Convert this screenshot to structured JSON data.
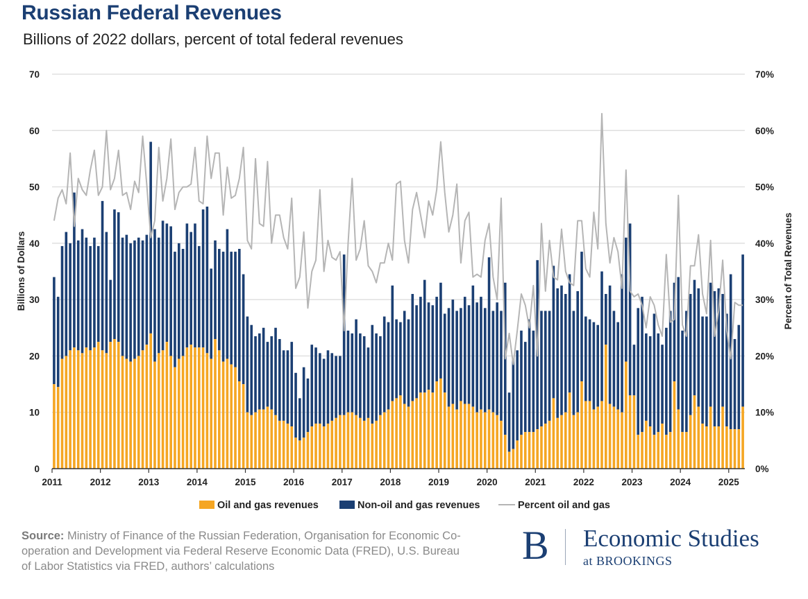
{
  "header": {
    "title": "Russian Federal Revenues",
    "subtitle": "Billions of 2022 dollars, percent of total federal revenues"
  },
  "source": {
    "label": "Source:",
    "text": " Ministry of Finance of the Russian Federation, Organisation for Economic Co-operation and Development via Federal Reserve Economic Data (FRED), U.S. Bureau of Labor Statistics via FRED, authors’ calculations"
  },
  "logo": {
    "letter": "B",
    "name": "Economic Studies",
    "sub": "at BROOKINGS"
  },
  "colors": {
    "oil": "#f5a623",
    "nonoil": "#1b3f73",
    "percent": "#b5b5b5",
    "grid": "#d9d9d9"
  },
  "chart_data": {
    "type": "bar",
    "stacked": true,
    "ylabel": "Billions of Dollars",
    "y2label": "Percent of Total Revenues",
    "ylim": [
      0,
      70
    ],
    "y2lim": [
      0,
      70
    ],
    "yticks": [
      "0",
      "10",
      "20",
      "30",
      "40",
      "50",
      "60",
      "70"
    ],
    "y2ticks": [
      "0%",
      "10%",
      "20%",
      "30%",
      "40%",
      "50%",
      "60%",
      "70%"
    ],
    "xticks": [
      "2011",
      "2012",
      "2013",
      "2014",
      "2015",
      "2016",
      "2017",
      "2018",
      "2019",
      "2020",
      "2021",
      "2022",
      "2023",
      "2024",
      "2025"
    ],
    "grid": true,
    "legend_position": "bottom",
    "series": [
      {
        "name": "Oil and gas revenues",
        "kind": "bar",
        "yearly_values": [
          [
            15.0,
            14.5,
            19.5,
            20.0,
            21.0,
            21.5,
            21.0,
            20.5,
            21.5,
            21.0,
            21.5,
            22.5
          ],
          [
            21.0,
            20.5,
            22.5,
            23.0,
            22.5,
            20.0,
            19.5,
            19.0,
            19.5,
            20.0,
            21.0,
            22.0
          ],
          [
            24.0,
            19.0,
            20.5,
            21.0,
            22.5,
            20.0,
            18.0,
            19.5,
            20.0,
            21.5,
            22.0,
            21.5
          ],
          [
            21.5,
            21.5,
            20.5,
            19.5,
            23.0,
            21.0,
            19.0,
            19.5,
            18.5,
            18.0,
            15.5,
            15.0
          ],
          [
            10.0,
            9.5,
            10.0,
            10.5,
            10.5,
            11.0,
            10.5,
            9.5,
            8.5,
            8.5,
            8.0,
            7.5
          ],
          [
            5.5,
            5.0,
            5.5,
            6.5,
            7.5,
            8.0,
            8.0,
            7.5,
            8.0,
            8.5,
            9.0,
            9.5
          ],
          [
            9.5,
            10.0,
            10.0,
            9.5,
            9.0,
            8.5,
            9.0,
            8.0,
            8.5,
            9.5,
            10.0,
            10.5
          ],
          [
            12.0,
            12.5,
            13.0,
            11.5,
            11.0,
            12.0,
            12.5,
            13.5,
            13.5,
            14.0,
            13.5,
            15.5
          ],
          [
            16.0,
            13.5,
            11.0,
            11.5,
            10.5,
            12.0,
            11.5,
            11.5,
            11.0,
            10.0,
            10.5,
            10.0
          ],
          [
            10.5,
            10.0,
            9.5,
            8.5,
            6.0,
            3.0,
            3.5,
            5.0,
            6.0,
            6.5,
            6.5,
            6.5
          ],
          [
            7.0,
            7.5,
            8.0,
            8.5,
            12.5,
            9.0,
            9.5,
            10.0,
            13.5,
            9.5,
            10.0,
            15.5
          ],
          [
            12.0,
            12.0,
            10.5,
            11.0,
            12.0,
            22.0,
            11.5,
            11.0,
            10.5,
            10.0,
            19.0,
            13.0
          ],
          [
            13.0,
            6.0,
            6.5,
            8.5,
            7.5,
            6.0,
            6.5,
            8.0,
            6.0,
            6.5,
            15.5,
            10.5
          ],
          [
            6.5,
            6.5,
            9.5,
            13.0,
            11.0,
            8.0,
            7.5,
            11.0,
            7.5,
            7.5,
            11.0,
            7.5
          ],
          [
            7.0,
            7.0,
            7.0,
            11.0
          ]
        ]
      },
      {
        "name": "Non-oil and gas revenues",
        "kind": "bar",
        "yearly_totals": [
          [
            34.0,
            30.5,
            39.5,
            42.0,
            40.0,
            49.0,
            40.5,
            42.5,
            41.0,
            39.5,
            41.0,
            39.5
          ],
          [
            47.5,
            42.0,
            33.5,
            46.0,
            45.5,
            41.0,
            41.5,
            40.0,
            40.5,
            41.0,
            40.5,
            41.5
          ],
          [
            58.0,
            42.5,
            41.0,
            44.0,
            43.5,
            43.0,
            38.5,
            40.0,
            39.0,
            43.5,
            42.0,
            43.5
          ],
          [
            39.5,
            46.0,
            46.5,
            35.5,
            40.5,
            39.0,
            38.5,
            42.5,
            38.5,
            38.5,
            39.0,
            34.5
          ],
          [
            27.0,
            25.5,
            23.5,
            24.0,
            25.0,
            22.5,
            23.5,
            25.0,
            23.0,
            21.0,
            21.0,
            22.5
          ],
          [
            17.0,
            12.5,
            18.0,
            16.0,
            22.0,
            21.5,
            20.5,
            19.5,
            21.0,
            20.5,
            20.0,
            20.0
          ],
          [
            38.0,
            24.5,
            24.0,
            26.5,
            24.0,
            23.5,
            21.5,
            25.5,
            24.0,
            23.5,
            27.0,
            26.0
          ],
          [
            32.5,
            26.5,
            26.0,
            28.0,
            26.5,
            31.0,
            29.0,
            30.5,
            33.5,
            29.5,
            29.0,
            30.5
          ],
          [
            33.0,
            27.5,
            28.5,
            30.0,
            28.0,
            28.5,
            30.5,
            29.0,
            32.5,
            29.5,
            30.5,
            28.5
          ],
          [
            37.5,
            28.0,
            29.5,
            28.0,
            33.0,
            13.5,
            19.5,
            21.0,
            24.5,
            22.5,
            26.5,
            24.5
          ],
          [
            37.0,
            28.0,
            28.0,
            28.0,
            36.0,
            32.0,
            32.5,
            31.0,
            34.5,
            28.0,
            31.5,
            38.5
          ],
          [
            27.0,
            26.5,
            26.0,
            25.5,
            35.0,
            31.0,
            32.5,
            28.0,
            26.0,
            34.5,
            41.0,
            43.5
          ],
          [
            22.0,
            28.5,
            30.5,
            24.0,
            23.5,
            27.5,
            24.0,
            22.0,
            25.0,
            28.0,
            33.0,
            34.0
          ],
          [
            24.5,
            28.0,
            31.0,
            33.5,
            32.0,
            27.0,
            27.0,
            33.0,
            31.5,
            32.0,
            31.0,
            27.5
          ],
          [
            34.5,
            23.0,
            25.5,
            38.0
          ]
        ]
      },
      {
        "name": "Percent oil and gas",
        "kind": "line",
        "axis": "right",
        "yearly_values": [
          [
            44.0,
            48.0,
            49.5,
            47.0,
            56.0,
            43.0,
            51.5,
            49.5,
            48.5,
            53.0,
            56.5,
            48.5
          ],
          [
            50.0,
            60.0,
            49.5,
            51.5,
            56.5,
            48.5,
            49.0,
            46.0,
            51.0,
            49.0,
            59.0,
            50.5
          ],
          [
            41.0,
            44.0,
            57.0,
            47.5,
            51.5,
            58.5,
            46.0,
            49.0,
            50.0,
            50.0,
            50.5,
            57.0
          ],
          [
            47.5,
            47.0,
            59.0,
            51.5,
            56.0,
            56.0,
            45.0,
            53.5,
            48.0,
            48.5,
            51.5,
            57.0
          ],
          [
            40.5,
            39.0,
            55.0,
            43.5,
            43.0,
            54.5,
            40.0,
            45.0,
            45.0,
            41.0,
            39.0,
            48.0
          ],
          [
            32.0,
            34.0,
            42.0,
            28.5,
            35.0,
            37.0,
            49.5,
            35.0,
            40.5,
            37.5,
            37.0,
            38.5
          ],
          [
            24.5,
            40.0,
            51.5,
            37.0,
            39.0,
            44.0,
            36.0,
            35.0,
            33.0,
            36.5,
            36.5,
            40.0
          ],
          [
            37.0,
            50.5,
            51.0,
            40.5,
            36.5,
            46.0,
            49.0,
            45.0,
            41.0,
            47.5,
            45.0,
            49.5
          ],
          [
            58.0,
            49.0,
            42.0,
            45.0,
            50.5,
            36.5,
            44.0,
            45.5,
            34.0,
            34.5,
            34.0,
            40.5
          ],
          [
            43.5,
            34.0,
            30.0,
            48.0,
            19.5,
            24.0,
            18.5,
            24.5,
            31.0,
            29.0,
            25.0,
            32.5
          ],
          [
            20.0,
            43.5,
            31.5,
            40.5,
            34.0,
            33.5,
            42.5,
            35.0,
            33.0,
            32.5,
            44.0,
            44.0
          ],
          [
            35.5,
            34.0,
            45.5,
            39.0,
            63.0,
            43.5,
            36.5,
            41.0,
            38.5,
            32.0,
            53.0,
            31.5
          ],
          [
            30.5,
            31.0,
            29.0,
            25.0,
            30.5,
            29.0,
            25.5,
            23.5,
            38.0,
            26.0,
            26.5,
            48.5
          ],
          [
            25.5,
            23.5,
            36.0,
            36.0,
            41.5,
            31.0,
            27.5,
            40.5,
            23.5,
            28.0,
            37.0,
            24.5
          ],
          [
            19.5,
            29.5,
            29.0,
            29.0
          ]
        ]
      }
    ]
  }
}
